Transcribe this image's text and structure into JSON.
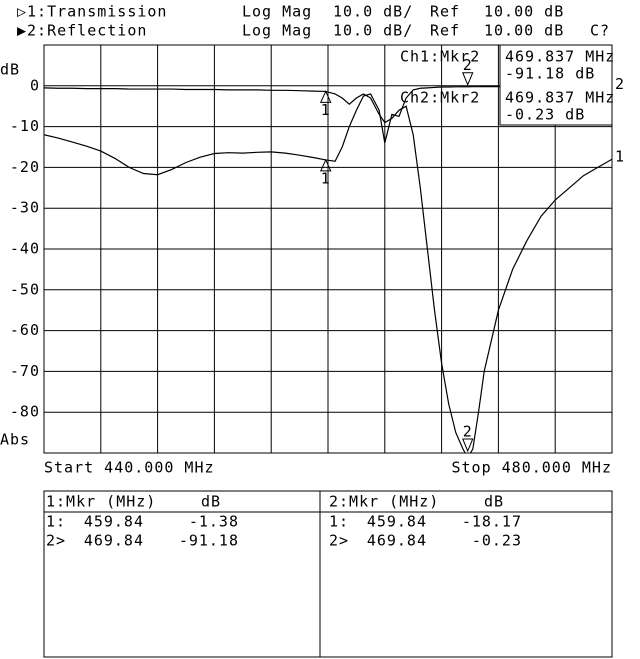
{
  "header": {
    "rows": [
      [
        "▷1:Transmission",
        "Log Mag",
        "10.0 dB/",
        "Ref",
        "10.00 dB"
      ],
      [
        "▶2:Reflection",
        "Log Mag",
        "10.0 dB/",
        "Ref",
        "10.00 dB",
        "C?"
      ]
    ]
  },
  "chart_data": {
    "type": "line",
    "y_label": "dB",
    "y_unit_label": "Abs",
    "start_label": "Start 440.000 MHz",
    "stop_label": "Stop 480.000 MHz",
    "xlim": [
      440,
      480
    ],
    "xticks": [
      444,
      448,
      452,
      456,
      460,
      464,
      468,
      472,
      476
    ],
    "ylim": [
      -90,
      10
    ],
    "yticks": [
      0,
      -10,
      -20,
      -30,
      -40,
      -50,
      -60,
      -70,
      -80
    ],
    "grid": true,
    "x": [
      440,
      441,
      442,
      443,
      444,
      445,
      446,
      447,
      448,
      449,
      450,
      451,
      452,
      453,
      454,
      455,
      456,
      457,
      458,
      459,
      459.84,
      460.5,
      461,
      461.5,
      462,
      462.5,
      463,
      463.6,
      464,
      464.5,
      465,
      465.5,
      466,
      466.5,
      467,
      467.5,
      468,
      468.5,
      469,
      469.5,
      469.84,
      470.2,
      470.6,
      471,
      472,
      473,
      474,
      475,
      476,
      477,
      478,
      479,
      480
    ],
    "series": [
      {
        "label": "1",
        "color": "#000000",
        "values": [
          -0.5,
          -0.6,
          -0.6,
          -0.7,
          -0.7,
          -0.7,
          -0.8,
          -0.8,
          -0.8,
          -0.8,
          -0.9,
          -0.9,
          -0.9,
          -1.0,
          -1.0,
          -1.0,
          -1.1,
          -1.1,
          -1.2,
          -1.3,
          -1.38,
          -2,
          -3,
          -4.5,
          -3,
          -2,
          -3,
          -7,
          -9,
          -8,
          -6,
          -5,
          -12,
          -25,
          -40,
          -55,
          -68,
          -78,
          -85,
          -89,
          -91.18,
          -89,
          -80,
          -70,
          -55,
          -45,
          -38,
          -32,
          -28,
          -25,
          -22,
          -20,
          -18
        ]
      },
      {
        "label": "2",
        "color": "#000000",
        "values": [
          -12,
          -12.8,
          -13.8,
          -14.8,
          -16,
          -17.8,
          -20,
          -21.5,
          -21.8,
          -20.5,
          -18.8,
          -17.5,
          -16.6,
          -16.4,
          -16.5,
          -16.3,
          -16.2,
          -16.5,
          -17,
          -17.6,
          -18.17,
          -18.5,
          -15,
          -10,
          -6,
          -2.5,
          -2,
          -6,
          -14,
          -7,
          -7.5,
          -3,
          -1,
          -0.6,
          -0.5,
          -0.4,
          -0.3,
          -0.3,
          -0.25,
          -0.23,
          -0.23,
          -0.22,
          -0.22,
          -0.21,
          -0.21,
          -0.2,
          -0.2,
          -0.2,
          -0.2,
          -0.2,
          -0.2,
          -0.2,
          -0.2
        ]
      }
    ],
    "marker_labels": [
      "1",
      "2"
    ],
    "readouts": [
      [
        "Ch1:Mkr2",
        "469.837 MHz",
        "-91.18 dB"
      ],
      [
        "Ch2:Mkr2",
        "469.837 MHz",
        "-0.23 dB"
      ]
    ]
  },
  "marker_tables": [
    {
      "header": [
        "1:Mkr (MHz)",
        "dB"
      ],
      "rows": [
        [
          "1:",
          459.84,
          -1.38
        ],
        [
          "2>",
          469.84,
          -91.18
        ]
      ]
    },
    {
      "header": [
        "2:Mkr (MHz)",
        "dB"
      ],
      "rows": [
        [
          "1:",
          459.84,
          -18.17
        ],
        [
          "2>",
          469.84,
          -0.23
        ]
      ]
    }
  ]
}
